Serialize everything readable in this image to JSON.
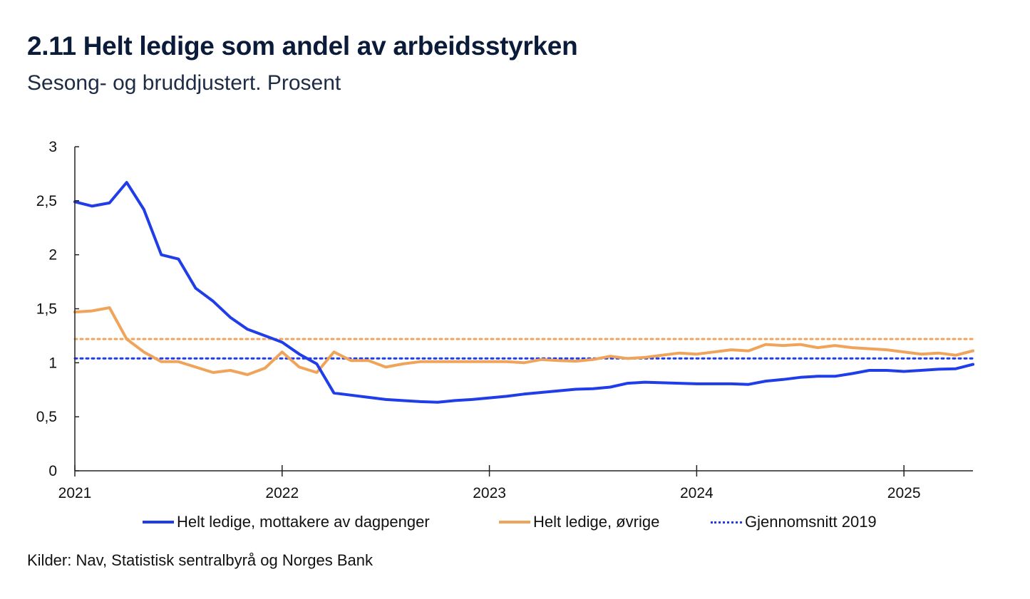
{
  "header": {
    "title": "2.11 Helt ledige som andel av arbeidsstyrken",
    "subtitle": "Sesong- og bruddjustert. Prosent"
  },
  "legend": {
    "series1": "Helt ledige, mottakere av dagpenger",
    "series2": "Helt ledige, øvrige",
    "reference": "Gjennomsnitt 2019"
  },
  "source": "Kilder: Nav, Statistisk sentralbyrå og Norges Bank",
  "colors": {
    "blue": "#1f3de8",
    "orange": "#f0a45a",
    "axis": "#222222"
  },
  "chart_data": {
    "type": "line",
    "title": "2.11 Helt ledige som andel av arbeidsstyrken",
    "subtitle": "Sesong- og bruddjustert. Prosent",
    "xlabel": "",
    "ylabel": "",
    "ylim": [
      0,
      3
    ],
    "xlim": [
      2021.0,
      2025.333
    ],
    "yticks": [
      0,
      0.5,
      1,
      1.5,
      2,
      2.5,
      3
    ],
    "ytick_labels": [
      "0",
      "0,5",
      "1",
      "1,5",
      "2",
      "2,5",
      "3"
    ],
    "xticks": [
      2021,
      2022,
      2023,
      2024,
      2025
    ],
    "xtick_labels": [
      "2021",
      "2022",
      "2023",
      "2024",
      "2025"
    ],
    "grid": false,
    "legend_position": "bottom",
    "x": [
      2021.0,
      2021.083,
      2021.167,
      2021.25,
      2021.333,
      2021.417,
      2021.5,
      2021.583,
      2021.667,
      2021.75,
      2021.833,
      2021.917,
      2022.0,
      2022.083,
      2022.167,
      2022.25,
      2022.333,
      2022.417,
      2022.5,
      2022.583,
      2022.667,
      2022.75,
      2022.833,
      2022.917,
      2023.0,
      2023.083,
      2023.167,
      2023.25,
      2023.333,
      2023.417,
      2023.5,
      2023.583,
      2023.667,
      2023.75,
      2023.833,
      2023.917,
      2024.0,
      2024.083,
      2024.167,
      2024.25,
      2024.333,
      2024.417,
      2024.5,
      2024.583,
      2024.667,
      2024.75,
      2024.833,
      2024.917,
      2025.0,
      2025.083,
      2025.167,
      2025.25,
      2025.333
    ],
    "series": [
      {
        "name": "Helt ledige, mottakere av dagpenger",
        "color": "#1f3de8",
        "style": "solid",
        "values": [
          2.49,
          2.45,
          2.48,
          2.67,
          2.42,
          2.0,
          1.96,
          1.69,
          1.57,
          1.42,
          1.31,
          1.25,
          1.19,
          1.08,
          0.99,
          0.72,
          0.7,
          0.68,
          0.66,
          0.65,
          0.64,
          0.635,
          0.65,
          0.66,
          0.675,
          0.69,
          0.71,
          0.725,
          0.74,
          0.755,
          0.76,
          0.775,
          0.81,
          0.82,
          0.815,
          0.81,
          0.805,
          0.805,
          0.805,
          0.8,
          0.83,
          0.845,
          0.865,
          0.875,
          0.875,
          0.9,
          0.93,
          0.93,
          0.92,
          0.93,
          0.94,
          0.945,
          0.985
        ]
      },
      {
        "name": "Helt ledige, øvrige",
        "color": "#f0a45a",
        "style": "solid",
        "values": [
          1.47,
          1.48,
          1.51,
          1.22,
          1.1,
          1.01,
          1.01,
          0.96,
          0.91,
          0.93,
          0.89,
          0.95,
          1.1,
          0.96,
          0.91,
          1.1,
          1.02,
          1.02,
          0.96,
          0.99,
          1.01,
          1.01,
          1.01,
          1.01,
          1.01,
          1.01,
          1.0,
          1.03,
          1.02,
          1.015,
          1.03,
          1.06,
          1.04,
          1.05,
          1.07,
          1.09,
          1.08,
          1.1,
          1.12,
          1.11,
          1.17,
          1.16,
          1.17,
          1.14,
          1.16,
          1.14,
          1.13,
          1.12,
          1.1,
          1.08,
          1.09,
          1.07,
          1.11
        ]
      }
    ],
    "reference_lines": [
      {
        "name": "Gjennomsnitt 2019",
        "series": "Helt ledige, mottakere av dagpenger",
        "value": 1.04,
        "color": "#1f3de8",
        "style": "dotted"
      },
      {
        "name": "Gjennomsnitt 2019",
        "series": "Helt ledige, øvrige",
        "value": 1.22,
        "color": "#f0a45a",
        "style": "dotted"
      }
    ]
  }
}
